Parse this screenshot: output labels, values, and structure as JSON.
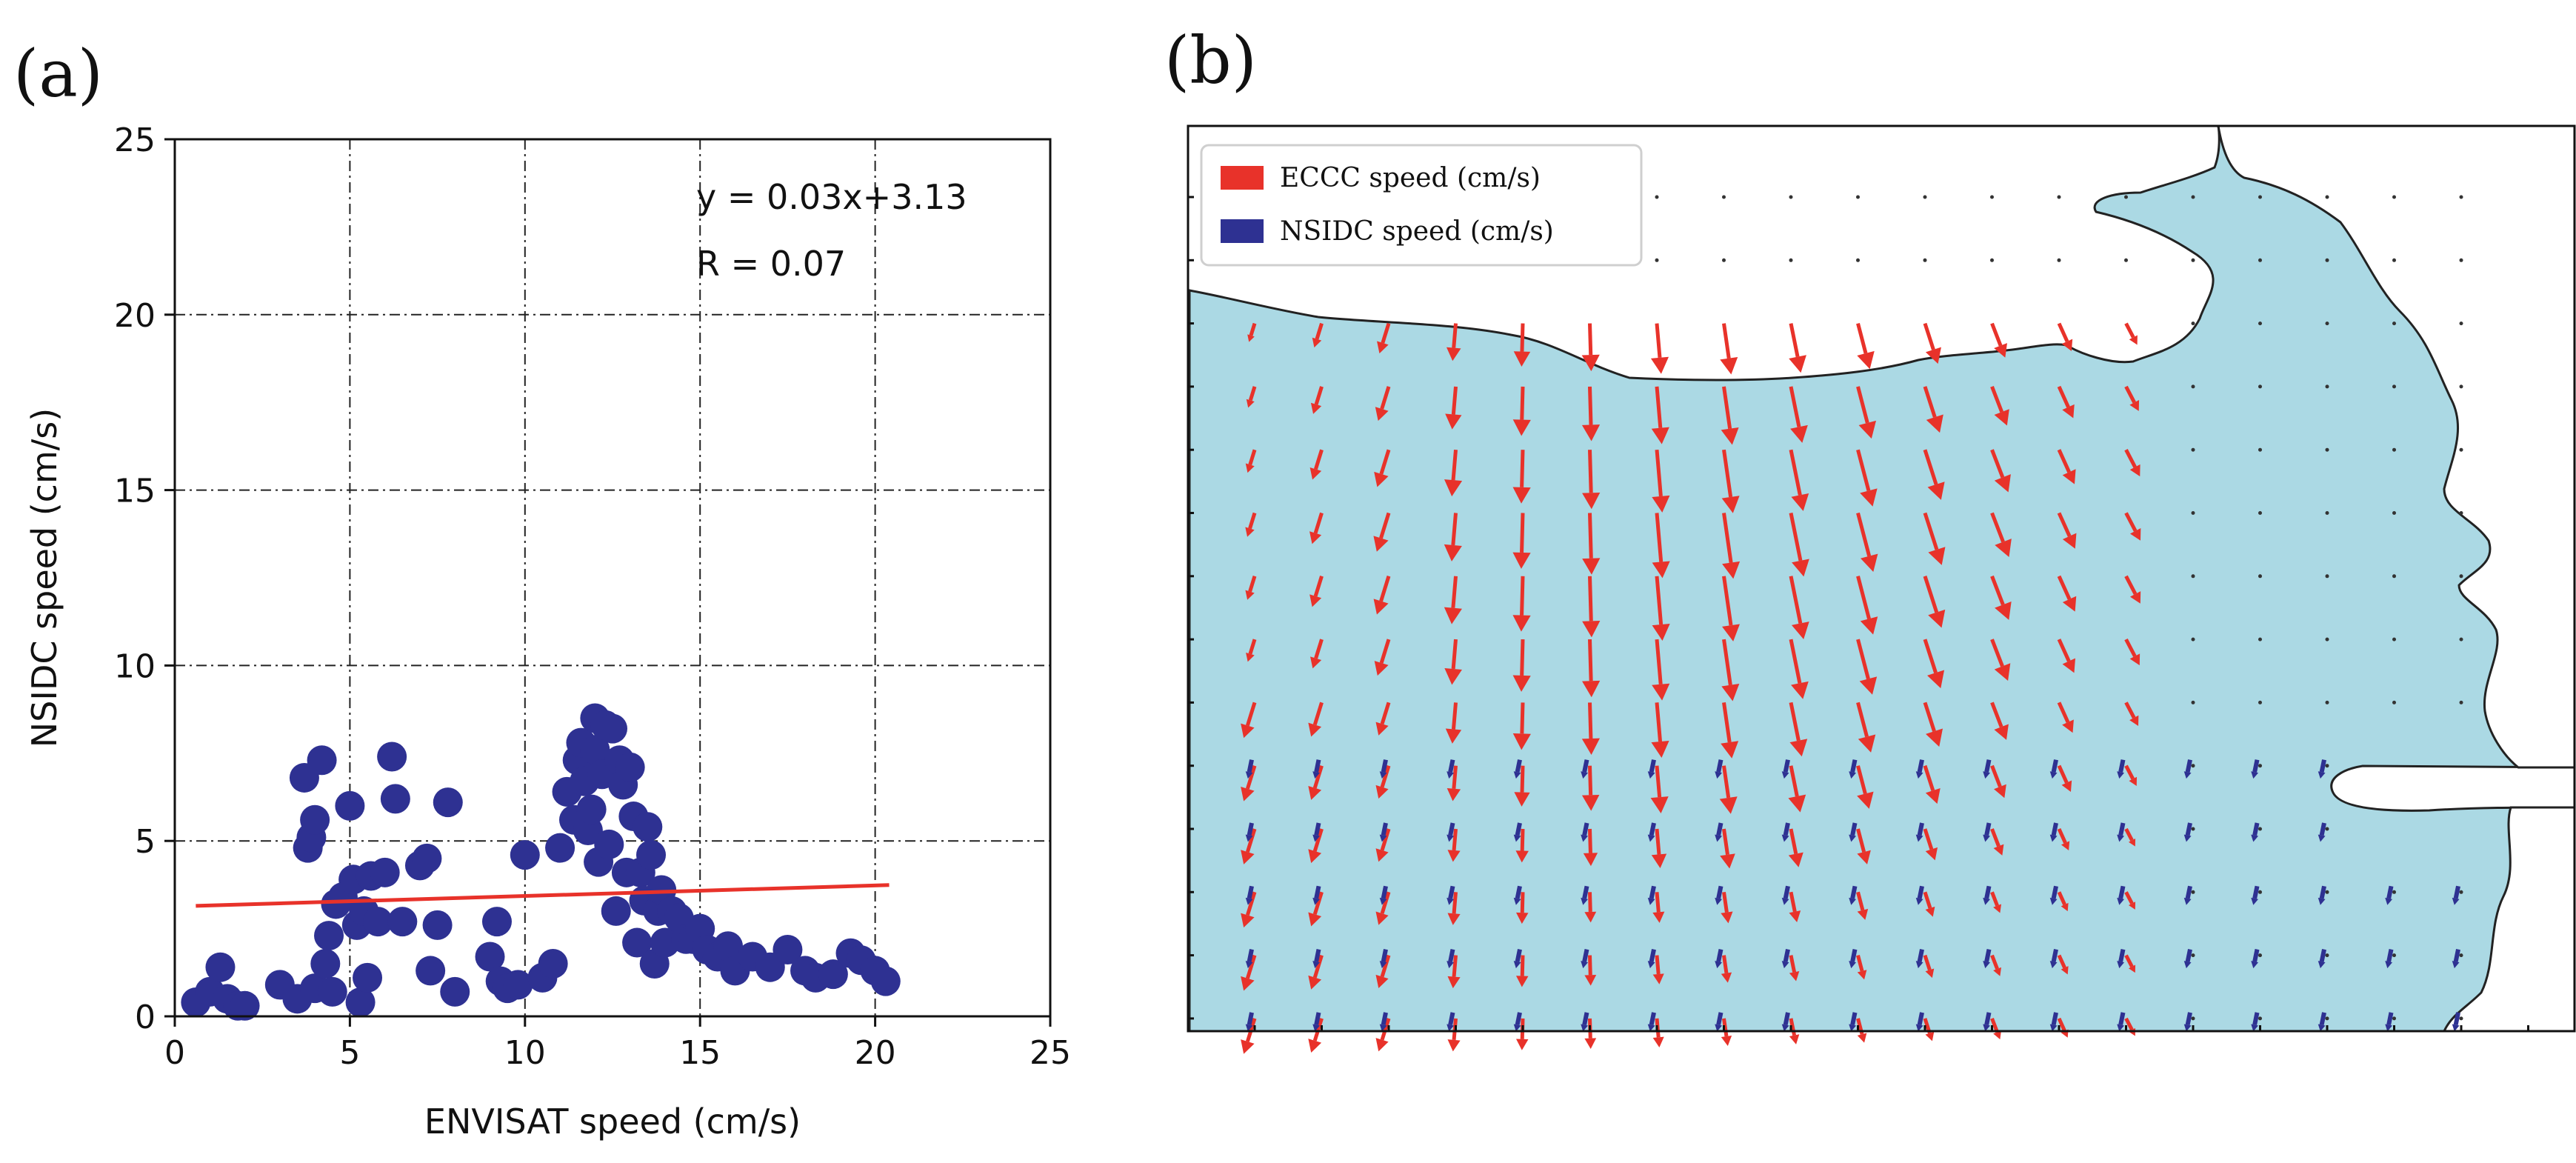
{
  "panel_labels": {
    "a": "(a)",
    "b": "(b)"
  },
  "chart_data": [
    {
      "type": "scatter",
      "title": "",
      "xlabel": "ENVISAT speed (cm/s)",
      "ylabel": "NSIDC speed (cm/s)",
      "xlim": [
        0,
        25
      ],
      "ylim": [
        0,
        25
      ],
      "xticks": [
        "0",
        "5",
        "10",
        "15",
        "20",
        "25"
      ],
      "yticks": [
        "0",
        "5",
        "10",
        "15",
        "20",
        "25"
      ],
      "grid": true,
      "annotations": [
        "y = 0.03x+3.13",
        "R = 0.07"
      ],
      "colors": {
        "points": "#2e3192",
        "fit": "#e8322a"
      },
      "fit_line": {
        "slope": 0.03,
        "intercept": 3.13,
        "x_range": [
          0.6,
          20.4
        ]
      },
      "series": [
        {
          "name": "points",
          "x": [
            0.6,
            1.0,
            1.3,
            1.5,
            1.8,
            2.0,
            3.0,
            3.5,
            3.7,
            3.8,
            3.9,
            4.0,
            4.0,
            4.2,
            4.3,
            4.4,
            4.5,
            4.6,
            4.8,
            5.0,
            5.1,
            5.2,
            5.3,
            5.4,
            5.5,
            5.6,
            5.8,
            6.0,
            6.2,
            6.3,
            6.5,
            7.0,
            7.2,
            7.3,
            7.5,
            7.8,
            8.0,
            9.0,
            9.2,
            9.3,
            9.5,
            9.8,
            10.0,
            10.5,
            10.8,
            11.0,
            11.2,
            11.4,
            11.5,
            11.6,
            11.7,
            11.8,
            11.9,
            12.0,
            12.0,
            12.1,
            12.2,
            12.3,
            12.4,
            12.5,
            12.6,
            12.7,
            12.8,
            12.9,
            13.0,
            13.1,
            13.2,
            13.3,
            13.4,
            13.5,
            13.6,
            13.7,
            13.8,
            13.9,
            14.0,
            14.2,
            14.4,
            14.6,
            14.8,
            15.0,
            15.2,
            15.5,
            15.8,
            16.0,
            16.5,
            17.0,
            17.5,
            18.0,
            18.3,
            18.8,
            19.3,
            19.6,
            20.0,
            20.3
          ],
          "y": [
            0.4,
            0.7,
            1.4,
            0.5,
            0.3,
            0.3,
            0.9,
            0.5,
            6.8,
            4.8,
            5.1,
            5.6,
            0.8,
            7.3,
            1.5,
            2.3,
            0.7,
            3.2,
            3.4,
            6.0,
            3.9,
            2.6,
            0.4,
            3.0,
            1.1,
            4.0,
            2.7,
            4.1,
            7.4,
            6.2,
            2.7,
            4.3,
            4.5,
            1.3,
            2.6,
            6.1,
            0.7,
            1.7,
            2.7,
            1.0,
            0.8,
            0.9,
            4.6,
            1.1,
            1.5,
            4.8,
            6.4,
            5.6,
            7.3,
            7.8,
            6.7,
            5.3,
            5.9,
            8.5,
            7.6,
            4.4,
            6.9,
            8.3,
            4.9,
            8.2,
            3.0,
            7.3,
            6.6,
            4.1,
            7.1,
            5.7,
            2.1,
            4.1,
            3.3,
            5.4,
            4.6,
            1.5,
            3.0,
            3.6,
            2.1,
            3.0,
            2.8,
            2.2,
            2.2,
            2.5,
            1.9,
            1.7,
            2.0,
            1.3,
            1.7,
            1.4,
            1.9,
            1.3,
            1.1,
            1.2,
            1.8,
            1.6,
            1.3,
            1.0
          ]
        }
      ]
    },
    {
      "type": "quiver",
      "title": "",
      "legend": [
        "ECCC speed (cm/s)",
        "NSIDC speed (cm/s)"
      ],
      "legend_position": "top-left",
      "colors": {
        "eccc": "#e8322a",
        "nsidc": "#2e3192",
        "water": "#abd9e4",
        "land": "#ffffff",
        "coast": "#222222"
      }
    }
  ]
}
